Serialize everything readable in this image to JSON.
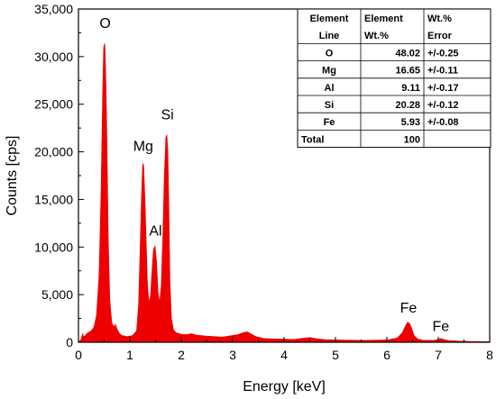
{
  "chart_data": {
    "type": "area",
    "xlabel": "Energy [keV]",
    "ylabel": "Counts [cps]",
    "xlim": [
      0,
      8
    ],
    "ylim": [
      0,
      35000
    ],
    "x_ticks": [
      0,
      1,
      2,
      3,
      4,
      5,
      6,
      7,
      8
    ],
    "y_ticks": [
      0,
      5000,
      10000,
      15000,
      20000,
      25000,
      30000,
      35000
    ],
    "x_tick_labels": [
      "0",
      "1",
      "2",
      "3",
      "4",
      "5",
      "6",
      "7",
      "8"
    ],
    "y_tick_labels": [
      "0",
      "5,000",
      "10,000",
      "15,000",
      "20,000",
      "25,000",
      "30,000",
      "35,000"
    ],
    "grid": false,
    "series_color": "#ee0000",
    "series": [
      {
        "x": [
          0.0,
          0.05,
          0.08,
          0.1,
          0.13,
          0.18,
          0.25,
          0.3,
          0.35,
          0.4,
          0.44,
          0.47,
          0.49,
          0.51,
          0.52,
          0.54,
          0.56,
          0.58,
          0.61,
          0.65,
          0.7,
          0.72,
          0.75,
          0.8,
          0.85,
          0.95,
          1.05,
          1.13,
          1.17,
          1.2,
          1.23,
          1.25,
          1.27,
          1.3,
          1.34,
          1.37,
          1.4,
          1.43,
          1.46,
          1.49,
          1.52,
          1.55,
          1.58,
          1.61,
          1.64,
          1.67,
          1.7,
          1.72,
          1.74,
          1.76,
          1.78,
          1.81,
          1.85,
          1.9,
          2.0,
          2.1,
          2.2,
          2.3,
          2.5,
          2.8,
          3.1,
          3.2,
          3.28,
          3.35,
          3.45,
          3.6,
          3.8,
          4.2,
          4.4,
          4.5,
          4.6,
          4.8,
          5.2,
          5.6,
          6.0,
          6.2,
          6.3,
          6.36,
          6.4,
          6.44,
          6.48,
          6.53,
          6.6,
          6.7,
          6.9,
          7.0,
          7.05,
          7.1,
          7.2,
          7.4,
          7.6,
          7.8,
          8.0
        ],
        "values": [
          0,
          300,
          900,
          600,
          700,
          1000,
          1200,
          1600,
          2800,
          7000,
          16000,
          26000,
          31000,
          31400,
          30500,
          26000,
          19000,
          11000,
          4500,
          2000,
          1600,
          1900,
          1400,
          900,
          700,
          600,
          700,
          1200,
          4000,
          10000,
          16000,
          18800,
          18500,
          14000,
          6500,
          4200,
          4800,
          7500,
          9800,
          10100,
          8500,
          5200,
          4200,
          6000,
          11000,
          17500,
          21500,
          21800,
          20000,
          14000,
          6500,
          2500,
          1300,
          1000,
          850,
          800,
          900,
          750,
          650,
          550,
          800,
          1000,
          1100,
          900,
          600,
          400,
          350,
          300,
          450,
          500,
          400,
          280,
          230,
          210,
          250,
          450,
          1000,
          1700,
          2100,
          2000,
          1500,
          700,
          350,
          220,
          200,
          300,
          400,
          300,
          180,
          120,
          90,
          70,
          60
        ]
      }
    ],
    "peak_labels": [
      {
        "text": "O",
        "x": 0.52,
        "y": 33000
      },
      {
        "text": "Mg",
        "x": 1.26,
        "y": 20100
      },
      {
        "text": "Al",
        "x": 1.5,
        "y": 11200
      },
      {
        "text": "Si",
        "x": 1.73,
        "y": 23400
      },
      {
        "text": "Fe",
        "x": 6.42,
        "y": 3100
      },
      {
        "text": "Fe",
        "x": 7.05,
        "y": 1200
      }
    ],
    "table": {
      "headers": [
        [
          "Element",
          "Element",
          "Wt.%"
        ],
        [
          "Line",
          "Wt.%",
          "Error"
        ]
      ],
      "rows": [
        [
          "O",
          "48.02",
          "+/-0.25"
        ],
        [
          "Mg",
          "16.65",
          "+/-0.11"
        ],
        [
          "Al",
          "9.11",
          "+/-0.17"
        ],
        [
          "Si",
          "20.28",
          "+/-0.12"
        ],
        [
          "Fe",
          "5.93",
          "+/-0.08"
        ],
        [
          "Total",
          "100",
          ""
        ]
      ]
    }
  }
}
